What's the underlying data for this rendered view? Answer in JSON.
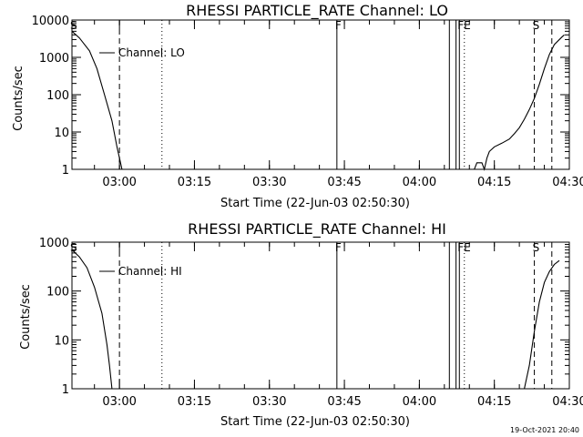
{
  "timestamp": "19-Oct-2021 20:40",
  "chart_data": [
    {
      "type": "line",
      "title": "RHESSI PARTICLE_RATE Channel: LO",
      "xlabel": "Start Time (22-Jun-03 02:50:30)",
      "ylabel": "Counts/sec",
      "yscale": "log",
      "xlim": [
        "02:50:30",
        "04:30:00"
      ],
      "ylim": [
        1,
        10000
      ],
      "x_ticks": [
        "03:00",
        "03:15",
        "03:30",
        "03:45",
        "04:00",
        "04:15",
        "04:30"
      ],
      "y_ticks": [
        "1",
        "10",
        "100",
        "1000",
        "10000"
      ],
      "legend": "Channel: LO",
      "markers": [
        {
          "label": "S",
          "time": "02:50:30",
          "style": "solid"
        },
        {
          "label": "",
          "time": "03:00:00",
          "style": "dashed"
        },
        {
          "label": "",
          "time": "03:08:30",
          "style": "dotted"
        },
        {
          "label": "F",
          "time": "03:43:30",
          "style": "solid"
        },
        {
          "label": "",
          "time": "04:06:00",
          "style": "solid"
        },
        {
          "label": "",
          "time": "04:07:20",
          "style": "solid"
        },
        {
          "label": "FE",
          "time": "04:08:00",
          "style": "solid"
        },
        {
          "label": "",
          "time": "04:09:00",
          "style": "dotted"
        },
        {
          "label": "S",
          "time": "04:23:00",
          "style": "dashed"
        },
        {
          "label": "",
          "time": "04:26:30",
          "style": "dashed"
        }
      ],
      "series": [
        {
          "name": "Channel: LO",
          "segments": [
            [
              [
                "02:50:30",
                5000
              ],
              [
                "02:52:00",
                3300
              ],
              [
                "02:54:00",
                1500
              ],
              [
                "02:55:30",
                500
              ],
              [
                "02:57:00",
                100
              ],
              [
                "02:58:30",
                20
              ],
              [
                "02:59:30",
                4
              ],
              [
                "03:00:30",
                1
              ]
            ],
            [
              [
                "04:10:00",
                1
              ],
              [
                "04:11:00",
                1
              ],
              [
                "04:11:30",
                1.5
              ],
              [
                "04:12:30",
                1.5
              ],
              [
                "04:13:00",
                1
              ],
              [
                "04:13:30",
                2
              ],
              [
                "04:14:00",
                3
              ],
              [
                "04:15:00",
                4
              ],
              [
                "04:16:30",
                5
              ],
              [
                "04:18:00",
                6.5
              ],
              [
                "04:19:00",
                9
              ],
              [
                "04:20:00",
                13
              ],
              [
                "04:21:00",
                22
              ],
              [
                "04:22:00",
                40
              ],
              [
                "04:23:00",
                80
              ],
              [
                "04:24:00",
                190
              ],
              [
                "04:25:00",
                500
              ],
              [
                "04:26:00",
                1200
              ],
              [
                "04:27:00",
                2200
              ],
              [
                "04:28:30",
                3500
              ],
              [
                "04:29:00",
                4000
              ]
            ]
          ]
        }
      ]
    },
    {
      "type": "line",
      "title": "RHESSI PARTICLE_RATE Channel: HI",
      "xlabel": "Start Time (22-Jun-03 02:50:30)",
      "ylabel": "Counts/sec",
      "yscale": "log",
      "xlim": [
        "02:50:30",
        "04:30:00"
      ],
      "ylim": [
        1,
        1000
      ],
      "x_ticks": [
        "03:00",
        "03:15",
        "03:30",
        "03:45",
        "04:00",
        "04:15",
        "04:30"
      ],
      "y_ticks": [
        "1",
        "10",
        "100",
        "1000"
      ],
      "legend": "Channel: HI",
      "markers": [
        {
          "label": "S",
          "time": "02:50:30",
          "style": "solid"
        },
        {
          "label": "",
          "time": "03:00:00",
          "style": "dashed"
        },
        {
          "label": "",
          "time": "03:08:30",
          "style": "dotted"
        },
        {
          "label": "F",
          "time": "03:43:30",
          "style": "solid"
        },
        {
          "label": "",
          "time": "04:06:00",
          "style": "solid"
        },
        {
          "label": "",
          "time": "04:07:20",
          "style": "solid"
        },
        {
          "label": "FE",
          "time": "04:08:00",
          "style": "solid"
        },
        {
          "label": "",
          "time": "04:09:00",
          "style": "dotted"
        },
        {
          "label": "S",
          "time": "04:23:00",
          "style": "dashed"
        },
        {
          "label": "",
          "time": "04:26:30",
          "style": "dashed"
        }
      ],
      "series": [
        {
          "name": "Channel: HI",
          "segments": [
            [
              [
                "02:50:30",
                700
              ],
              [
                "02:52:00",
                500
              ],
              [
                "02:53:30",
                300
              ],
              [
                "02:55:00",
                120
              ],
              [
                "02:56:30",
                35
              ],
              [
                "02:57:30",
                8
              ],
              [
                "02:58:00",
                3
              ],
              [
                "02:58:30",
                1
              ]
            ],
            [
              [
                "04:21:00",
                1
              ],
              [
                "04:22:00",
                3
              ],
              [
                "04:23:00",
                15
              ],
              [
                "04:24:00",
                60
              ],
              [
                "04:25:00",
                150
              ],
              [
                "04:26:00",
                250
              ],
              [
                "04:27:00",
                350
              ],
              [
                "04:28:00",
                420
              ]
            ]
          ]
        }
      ]
    }
  ]
}
